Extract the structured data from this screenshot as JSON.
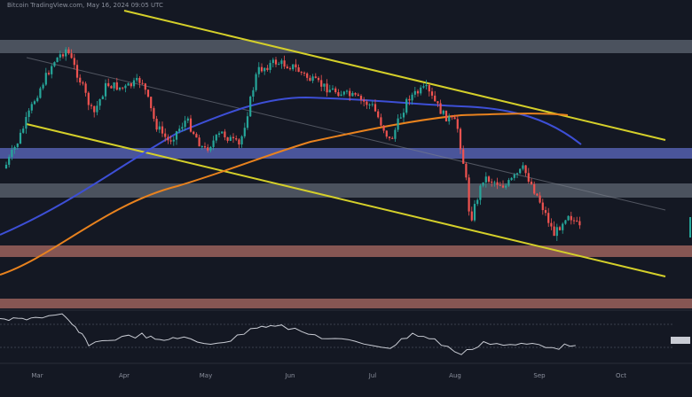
{
  "header": {
    "text": "Bitcoin TradingView.com, May 16, 2024 09:05 UTC"
  },
  "x_axis": {
    "labels": [
      "Mar",
      "Apr",
      "May",
      "Jun",
      "Jul",
      "Aug",
      "Sep",
      "Oct"
    ]
  }
}
